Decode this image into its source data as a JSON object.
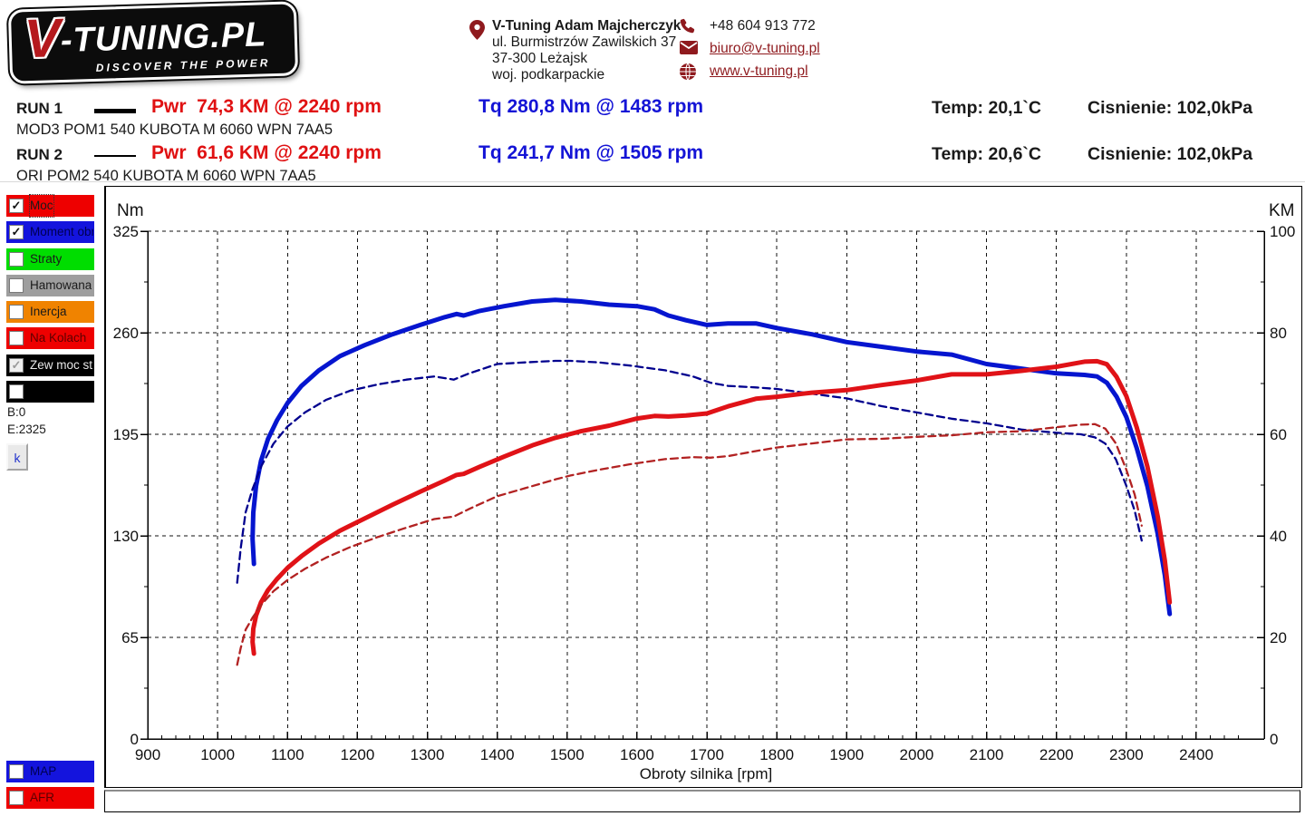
{
  "header": {
    "logo": {
      "v": "V",
      "rest": "-TUNING.PL",
      "tagline": "DISCOVER THE POWER"
    },
    "address": {
      "name": "V-Tuning Adam Majcherczyk",
      "line1": "ul. Burmistrzów Zawilskich 37",
      "line2": "37-300 Leżajsk",
      "line3": "woj. podkarpackie"
    },
    "contact": {
      "phone": "+48 604 913 772",
      "email": "biuro@v-tuning.pl",
      "web": "www.v-tuning.pl"
    },
    "brand_color": "#8f1a1e"
  },
  "runs": [
    {
      "label": "RUN 1",
      "power": "Pwr  74,3 KM @ 2240 rpm",
      "torque": "Tq 280,8 Nm @ 1483 rpm",
      "temp": "Temp: 20,1`C",
      "pressure": "Cisnienie: 102,0kPa",
      "desc": "MOD3 POM1 540 KUBOTA M 6060 WPN 7AA5"
    },
    {
      "label": "RUN 2",
      "power": "Pwr  61,6 KM @ 2240 rpm",
      "torque": "Tq 241,7 Nm @ 1505 rpm",
      "temp": "Temp: 20,6`C",
      "pressure": "Cisnienie: 102,0kPa",
      "desc": "ORI POM2 540 KUBOTA M 6060 WPN 7AA5"
    }
  ],
  "sidebar": {
    "items": [
      {
        "label": "Moc",
        "bg": "#ee0000",
        "text_color": "#1a1a1a",
        "checked": true,
        "disabled": false,
        "focused": true
      },
      {
        "label": "Moment obr",
        "bg": "#1414dd",
        "text_color": "#000050",
        "checked": true,
        "disabled": false,
        "focused": false
      },
      {
        "label": "Straty",
        "bg": "#00dd00",
        "text_color": "#1a1a1a",
        "checked": false,
        "disabled": false,
        "focused": false
      },
      {
        "label": "Hamowana",
        "bg": "#9e9e9e",
        "text_color": "#1a1a1a",
        "checked": false,
        "disabled": false,
        "focused": false
      },
      {
        "label": "Inercja",
        "bg": "#f08300",
        "text_color": "#1a1a1a",
        "checked": false,
        "disabled": false,
        "focused": false
      },
      {
        "label": "Na Kolach",
        "bg": "#ee0000",
        "text_color": "#5c0000",
        "checked": false,
        "disabled": false,
        "focused": false
      },
      {
        "label": "Zew moc st",
        "bg": "#000000",
        "text_color": "#e8e8e8",
        "checked": true,
        "disabled": true,
        "focused": false
      },
      {
        "label": "",
        "bg": "#000000",
        "text_color": "#ffffff",
        "checked": false,
        "disabled": false,
        "focused": false
      }
    ],
    "b_value": "B:0",
    "e_value": "E:2325",
    "k_button": "k"
  },
  "bottom_toggles": [
    {
      "label": "MAP",
      "bg": "#1414dd",
      "text_color": "#000050",
      "checked": false
    },
    {
      "label": "AFR",
      "bg": "#ee0000",
      "text_color": "#5c0000",
      "checked": false
    }
  ],
  "chart_data": {
    "type": "line",
    "xlabel": "Obroty silnika [rpm]",
    "x_range": [
      900,
      2480
    ],
    "x_ticks": [
      900,
      1000,
      1100,
      1200,
      1300,
      1400,
      1500,
      1600,
      1700,
      1800,
      1900,
      2000,
      2100,
      2200,
      2300,
      2400
    ],
    "x_minor_step": 20,
    "x_gridlines": [
      1000,
      1100,
      1200,
      1300,
      1400,
      1500,
      1600,
      1700,
      1800,
      1900,
      2000,
      2100,
      2200,
      2300,
      2400
    ],
    "left_axis": {
      "label": "Nm",
      "range": [
        0,
        325
      ],
      "ticks": [
        0,
        65,
        130,
        195,
        260,
        325
      ],
      "minor": [
        32.5,
        97.5,
        162.5,
        227.5,
        292.5
      ]
    },
    "right_axis": {
      "label": "KM",
      "range": [
        0,
        100
      ],
      "ticks": [
        0,
        20,
        40,
        60,
        80,
        100
      ],
      "minor": [
        10,
        30,
        50,
        70,
        90
      ]
    },
    "grid": true,
    "series": [
      {
        "name": "RUN 1 Moment obrotowy (MOD)",
        "axis": "left",
        "style": "solid",
        "color": "#0515cf",
        "width": 5,
        "points": [
          [
            1052,
            112
          ],
          [
            1050,
            128
          ],
          [
            1051,
            145
          ],
          [
            1055,
            162
          ],
          [
            1062,
            178
          ],
          [
            1072,
            192
          ],
          [
            1085,
            204
          ],
          [
            1100,
            215
          ],
          [
            1120,
            226
          ],
          [
            1145,
            236
          ],
          [
            1175,
            245
          ],
          [
            1210,
            252
          ],
          [
            1250,
            259
          ],
          [
            1290,
            265
          ],
          [
            1325,
            270
          ],
          [
            1342,
            272
          ],
          [
            1352,
            271
          ],
          [
            1375,
            274
          ],
          [
            1410,
            277
          ],
          [
            1450,
            280
          ],
          [
            1483,
            281
          ],
          [
            1520,
            280
          ],
          [
            1560,
            278
          ],
          [
            1600,
            277
          ],
          [
            1625,
            275
          ],
          [
            1645,
            271
          ],
          [
            1670,
            268
          ],
          [
            1700,
            265
          ],
          [
            1730,
            266
          ],
          [
            1770,
            266
          ],
          [
            1800,
            263
          ],
          [
            1850,
            259
          ],
          [
            1900,
            254
          ],
          [
            1950,
            251
          ],
          [
            2000,
            248
          ],
          [
            2050,
            246
          ],
          [
            2100,
            240
          ],
          [
            2150,
            237
          ],
          [
            2200,
            234
          ],
          [
            2240,
            233
          ],
          [
            2258,
            232
          ],
          [
            2272,
            228
          ],
          [
            2286,
            219
          ],
          [
            2300,
            206
          ],
          [
            2315,
            186
          ],
          [
            2330,
            162
          ],
          [
            2345,
            131
          ],
          [
            2355,
            105
          ],
          [
            2362,
            80
          ]
        ]
      },
      {
        "name": "RUN 2 Moment obrotowy (ORI)",
        "axis": "left",
        "style": "dashed",
        "color": "#00008e",
        "width": 2.3,
        "points": [
          [
            1028,
            100
          ],
          [
            1033,
            122
          ],
          [
            1040,
            145
          ],
          [
            1050,
            160
          ],
          [
            1063,
            175
          ],
          [
            1080,
            189
          ],
          [
            1100,
            200
          ],
          [
            1125,
            209
          ],
          [
            1155,
            217
          ],
          [
            1190,
            223
          ],
          [
            1230,
            227
          ],
          [
            1270,
            230
          ],
          [
            1310,
            232
          ],
          [
            1338,
            230
          ],
          [
            1360,
            234
          ],
          [
            1400,
            240
          ],
          [
            1440,
            241
          ],
          [
            1483,
            242
          ],
          [
            1505,
            242
          ],
          [
            1545,
            241
          ],
          [
            1590,
            239
          ],
          [
            1640,
            236
          ],
          [
            1680,
            232
          ],
          [
            1705,
            228
          ],
          [
            1730,
            226
          ],
          [
            1770,
            225
          ],
          [
            1800,
            224
          ],
          [
            1850,
            221
          ],
          [
            1900,
            218
          ],
          [
            1950,
            213
          ],
          [
            2000,
            209
          ],
          [
            2050,
            205
          ],
          [
            2100,
            202
          ],
          [
            2150,
            198
          ],
          [
            2200,
            196
          ],
          [
            2235,
            195
          ],
          [
            2255,
            193
          ],
          [
            2270,
            189
          ],
          [
            2285,
            179
          ],
          [
            2300,
            162
          ],
          [
            2312,
            146
          ],
          [
            2322,
            127
          ]
        ]
      },
      {
        "name": "RUN 1 Moc (MOD)",
        "axis": "right",
        "style": "solid",
        "color": "#e01217",
        "width": 5,
        "points": [
          [
            1052,
            16.8
          ],
          [
            1050,
            19.1
          ],
          [
            1051,
            21.7
          ],
          [
            1055,
            24.3
          ],
          [
            1062,
            26.9
          ],
          [
            1072,
            29.3
          ],
          [
            1085,
            31.5
          ],
          [
            1100,
            33.7
          ],
          [
            1120,
            36.0
          ],
          [
            1145,
            38.5
          ],
          [
            1175,
            41.0
          ],
          [
            1210,
            43.4
          ],
          [
            1250,
            46.1
          ],
          [
            1290,
            48.7
          ],
          [
            1325,
            50.9
          ],
          [
            1342,
            52.0
          ],
          [
            1352,
            52.2
          ],
          [
            1375,
            53.6
          ],
          [
            1410,
            55.6
          ],
          [
            1450,
            57.8
          ],
          [
            1483,
            59.3
          ],
          [
            1520,
            60.6
          ],
          [
            1560,
            61.7
          ],
          [
            1600,
            63.1
          ],
          [
            1625,
            63.6
          ],
          [
            1645,
            63.5
          ],
          [
            1670,
            63.7
          ],
          [
            1700,
            64.1
          ],
          [
            1730,
            65.5
          ],
          [
            1770,
            67.0
          ],
          [
            1800,
            67.4
          ],
          [
            1850,
            68.2
          ],
          [
            1900,
            68.7
          ],
          [
            1950,
            69.7
          ],
          [
            2000,
            70.6
          ],
          [
            2050,
            71.8
          ],
          [
            2100,
            71.8
          ],
          [
            2150,
            72.5
          ],
          [
            2200,
            73.3
          ],
          [
            2240,
            74.3
          ],
          [
            2258,
            74.4
          ],
          [
            2272,
            73.8
          ],
          [
            2286,
            71.3
          ],
          [
            2300,
            67.5
          ],
          [
            2315,
            61.3
          ],
          [
            2330,
            53.7
          ],
          [
            2345,
            43.7
          ],
          [
            2355,
            35.2
          ],
          [
            2362,
            26.9
          ]
        ]
      },
      {
        "name": "RUN 2 Moc (ORI)",
        "axis": "right",
        "style": "dashed",
        "color": "#b22222",
        "width": 2.3,
        "points": [
          [
            1028,
            14.6
          ],
          [
            1033,
            17.9
          ],
          [
            1040,
            21.5
          ],
          [
            1050,
            23.9
          ],
          [
            1063,
            26.5
          ],
          [
            1080,
            29.1
          ],
          [
            1100,
            31.3
          ],
          [
            1125,
            33.5
          ],
          [
            1155,
            35.7
          ],
          [
            1190,
            37.8
          ],
          [
            1230,
            39.8
          ],
          [
            1270,
            41.6
          ],
          [
            1310,
            43.3
          ],
          [
            1338,
            43.8
          ],
          [
            1360,
            45.3
          ],
          [
            1400,
            47.8
          ],
          [
            1440,
            49.4
          ],
          [
            1483,
            51.1
          ],
          [
            1505,
            51.9
          ],
          [
            1545,
            53.0
          ],
          [
            1590,
            54.1
          ],
          [
            1640,
            55.1
          ],
          [
            1680,
            55.5
          ],
          [
            1705,
            55.4
          ],
          [
            1730,
            55.7
          ],
          [
            1770,
            56.7
          ],
          [
            1800,
            57.4
          ],
          [
            1850,
            58.2
          ],
          [
            1900,
            59.0
          ],
          [
            1950,
            59.1
          ],
          [
            2000,
            59.5
          ],
          [
            2050,
            59.8
          ],
          [
            2100,
            60.4
          ],
          [
            2150,
            60.6
          ],
          [
            2200,
            61.4
          ],
          [
            2235,
            61.9
          ],
          [
            2255,
            62.0
          ],
          [
            2270,
            61.1
          ],
          [
            2285,
            58.2
          ],
          [
            2300,
            53.0
          ],
          [
            2312,
            48.1
          ],
          [
            2322,
            42.0
          ]
        ]
      }
    ]
  }
}
